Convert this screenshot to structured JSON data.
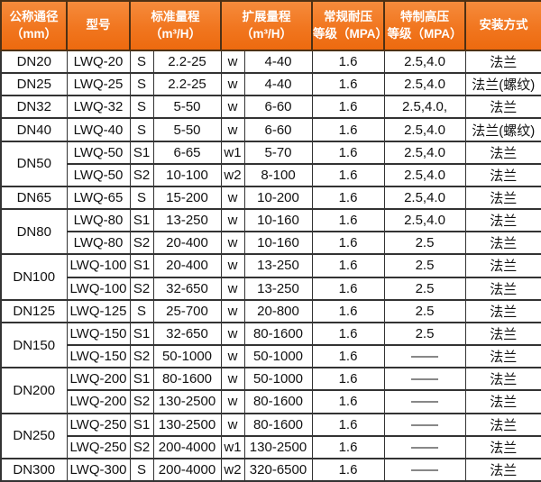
{
  "colors": {
    "header_bg_top": "#f68b3c",
    "header_bg_bottom": "#ed6a0f",
    "header_text": "#ffffff",
    "body_text": "#111111",
    "border": "#333333",
    "header_border": "#4d3014",
    "body_bg": "#ffffff"
  },
  "table": {
    "headers": [
      {
        "colspan": 1,
        "lines": [
          "公称通径",
          "（mm）"
        ]
      },
      {
        "colspan": 1,
        "lines": [
          "型号"
        ]
      },
      {
        "colspan": 2,
        "lines": [
          "标准量程",
          "（m³/H）"
        ]
      },
      {
        "colspan": 2,
        "lines": [
          "扩展量程",
          "（m³/H）"
        ]
      },
      {
        "colspan": 1,
        "lines": [
          "常规耐压",
          "等级（MPA）"
        ]
      },
      {
        "colspan": 1,
        "lines": [
          "特制高压",
          "等级（MPA）"
        ]
      },
      {
        "colspan": 1,
        "lines": [
          "安装方式"
        ]
      }
    ],
    "groups": [
      {
        "dn": "DN20",
        "rows": [
          [
            "LWQ-20",
            "S",
            "2.2-25",
            "w",
            "4-40",
            "1.6",
            "2.5,4.0",
            "法兰"
          ]
        ]
      },
      {
        "dn": "DN25",
        "rows": [
          [
            "LWQ-25",
            "S",
            "2.2-25",
            "w",
            "4-40",
            "1.6",
            "2.5,4.0",
            "法兰(螺纹)"
          ]
        ]
      },
      {
        "dn": "DN32",
        "rows": [
          [
            "LWQ-32",
            "S",
            "5-50",
            "w",
            "6-60",
            "1.6",
            "2.5,4.0,",
            "法兰"
          ]
        ]
      },
      {
        "dn": "DN40",
        "rows": [
          [
            "LWQ-40",
            "S",
            "5-50",
            "w",
            "6-60",
            "1.6",
            "2.5,4.0",
            "法兰(螺纹)"
          ]
        ]
      },
      {
        "dn": "DN50",
        "rows": [
          [
            "LWQ-50",
            "S1",
            "6-65",
            "w1",
            "5-70",
            "1.6",
            "2.5,4.0",
            "法兰"
          ],
          [
            "LWQ-50",
            "S2",
            "10-100",
            "w2",
            "8-100",
            "1.6",
            "2.5,4.0",
            "法兰"
          ]
        ]
      },
      {
        "dn": "DN65",
        "rows": [
          [
            "LWQ-65",
            "S",
            "15-200",
            "w",
            "10-200",
            "1.6",
            "2.5,4.0",
            "法兰"
          ]
        ]
      },
      {
        "dn": "DN80",
        "rows": [
          [
            "LWQ-80",
            "S1",
            "13-250",
            "w",
            "10-160",
            "1.6",
            "2.5,4.0",
            "法兰"
          ],
          [
            "LWQ-80",
            "S2",
            "20-400",
            "w",
            "10-160",
            "1.6",
            "2.5",
            "法兰"
          ]
        ]
      },
      {
        "dn": "DN100",
        "rows": [
          [
            "LWQ-100",
            "S1",
            "20-400",
            "w",
            "13-250",
            "1.6",
            "2.5",
            "法兰"
          ],
          [
            "LWQ-100",
            "S2",
            "32-650",
            "w",
            "13-250",
            "1.6",
            "2.5",
            "法兰"
          ]
        ]
      },
      {
        "dn": "DN125",
        "rows": [
          [
            "LWQ-125",
            "S",
            "25-700",
            "w",
            "20-800",
            "1.6",
            "2.5",
            "法兰"
          ]
        ]
      },
      {
        "dn": "DN150",
        "rows": [
          [
            "LWQ-150",
            "S1",
            "32-650",
            "w",
            "80-1600",
            "1.6",
            "2.5",
            "法兰"
          ],
          [
            "LWQ-150",
            "S2",
            "50-1000",
            "w",
            "50-1000",
            "1.6",
            "——",
            "法兰"
          ]
        ]
      },
      {
        "dn": "DN200",
        "rows": [
          [
            "LWQ-200",
            "S1",
            "80-1600",
            "w",
            "50-1000",
            "1.6",
            "——",
            "法兰"
          ],
          [
            "LWQ-200",
            "S2",
            "130-2500",
            "w",
            "80-1600",
            "1.6",
            "——",
            "法兰"
          ]
        ]
      },
      {
        "dn": "DN250",
        "rows": [
          [
            "LWQ-250",
            "S1",
            "130-2500",
            "w",
            "80-1600",
            "1.6",
            "——",
            "法兰"
          ],
          [
            "LWQ-250",
            "S2",
            "200-4000",
            "w1",
            "130-2500",
            "1.6",
            "——",
            "法兰"
          ]
        ]
      },
      {
        "dn": "DN300",
        "rows": [
          [
            "LWQ-300",
            "S",
            "200-4000",
            "w2",
            "320-6500",
            "1.6",
            "——",
            "法兰"
          ]
        ]
      }
    ]
  }
}
